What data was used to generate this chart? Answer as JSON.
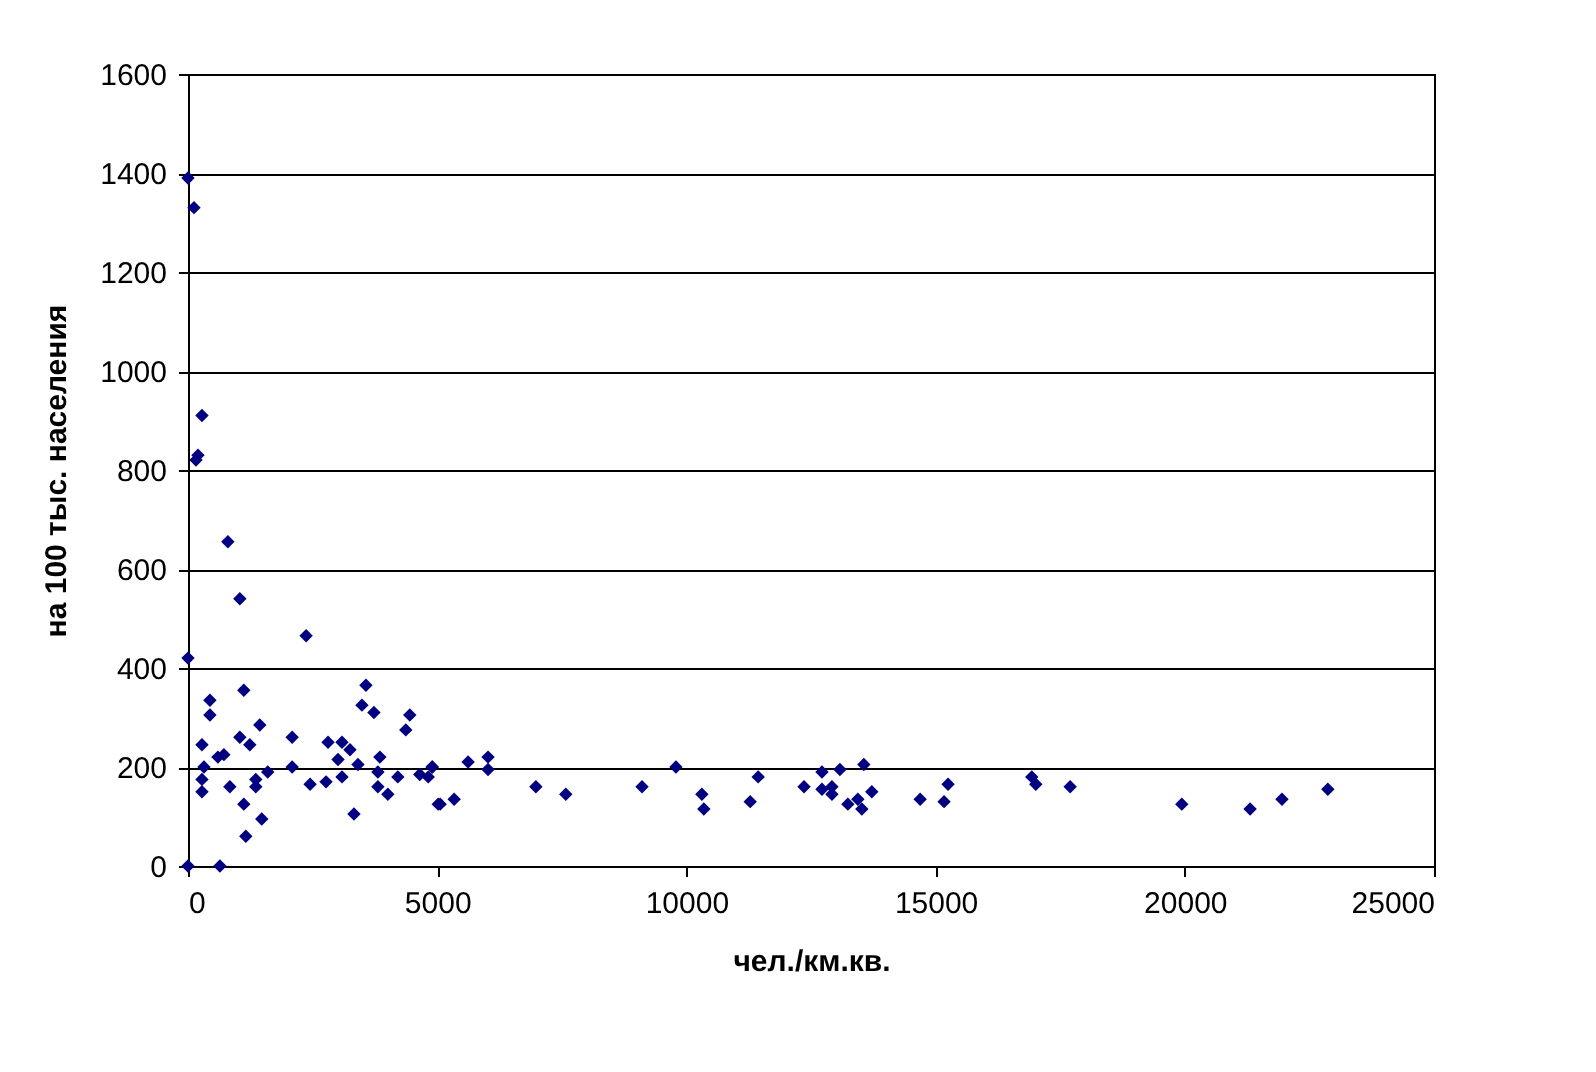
{
  "chart_data": {
    "type": "scatter",
    "xlabel": "чел./км.кв.",
    "ylabel": "на 100 тыс. населения",
    "xlim": [
      0,
      25000
    ],
    "xticks": [
      0,
      5000,
      10000,
      15000,
      20000,
      25000
    ],
    "ylim": [
      0,
      1600
    ],
    "yticks": [
      0,
      200,
      400,
      600,
      800,
      1000,
      1200,
      1400,
      1600
    ],
    "grid": "y",
    "marker": "diamond",
    "legend": false,
    "series": [
      {
        "color": "#000080",
        "x": [
          0,
          120,
          280,
          200,
          160,
          800,
          1040,
          0,
          2370,
          0,
          640,
          440,
          440,
          280,
          320,
          280,
          280,
          720,
          600,
          840,
          1120,
          1040,
          1240,
          1440,
          1360,
          1360,
          1120,
          1480,
          1160,
          1600,
          2090,
          2090,
          2450,
          2770,
          2810,
          3090,
          3250,
          3010,
          3090,
          3330,
          3410,
          3570,
          3490,
          3730,
          3850,
          3810,
          3810,
          4010,
          4210,
          4370,
          4450,
          4650,
          4820,
          4900,
          5060,
          4900,
          5020,
          5340,
          5620,
          6020,
          6020,
          6980,
          7580,
          9110,
          9790,
          10310,
          10350,
          11280,
          11440,
          12360,
          12720,
          12720,
          12920,
          12920,
          13080,
          13240,
          13440,
          13560,
          13520,
          13720,
          14690,
          15170,
          15250,
          16930,
          17010,
          17700,
          19940,
          21310,
          21950,
          22870
        ],
        "values": [
          1390,
          1330,
          910,
          830,
          820,
          655,
          540,
          420,
          465,
          0,
          0,
          335,
          305,
          245,
          200,
          175,
          150,
          225,
          220,
          160,
          355,
          260,
          245,
          285,
          175,
          160,
          125,
          95,
          60,
          190,
          260,
          200,
          165,
          170,
          250,
          250,
          235,
          215,
          180,
          105,
          205,
          365,
          325,
          310,
          220,
          190,
          160,
          145,
          180,
          275,
          305,
          185,
          180,
          200,
          125,
          200,
          125,
          135,
          210,
          220,
          195,
          160,
          145,
          160,
          200,
          145,
          115,
          130,
          180,
          160,
          190,
          155,
          160,
          145,
          195,
          125,
          135,
          205,
          115,
          150,
          135,
          130,
          165,
          180,
          165,
          160,
          125,
          115,
          135,
          155
        ]
      }
    ]
  }
}
